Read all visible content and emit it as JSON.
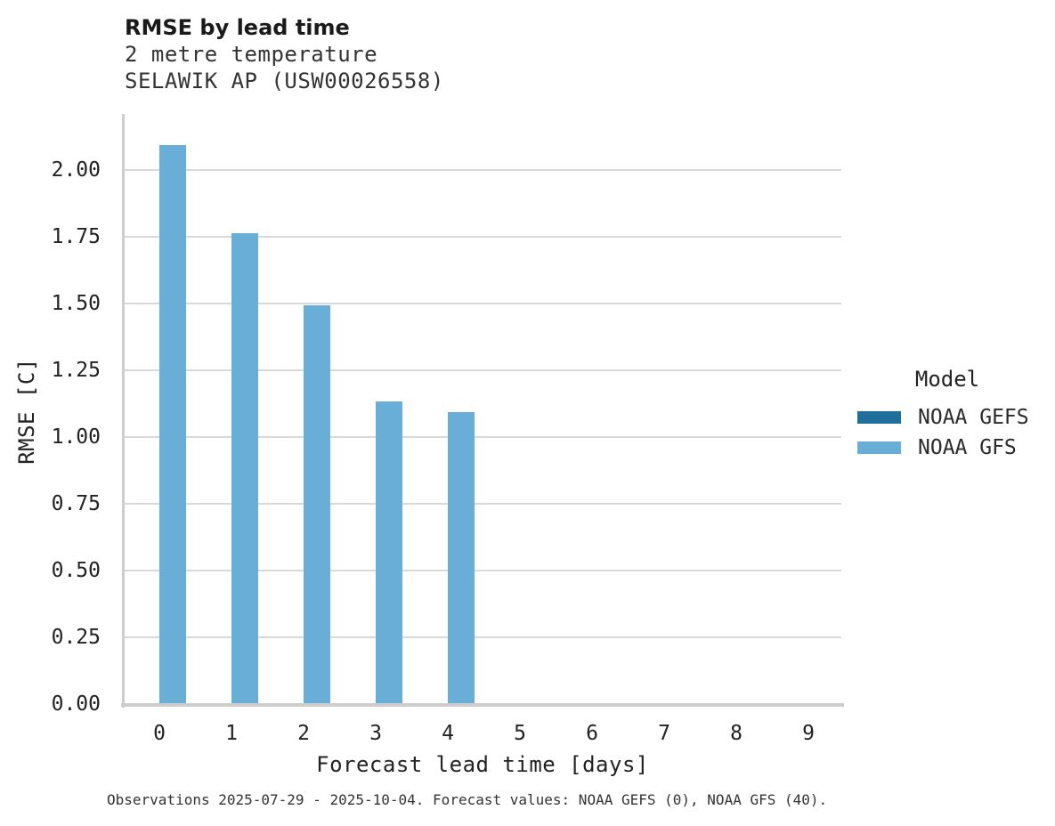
{
  "header": {
    "subtitle_line1": "2 metre temperature",
    "subtitle_line2": "SELAWIK AP (USW00026558)"
  },
  "chart_data": {
    "type": "bar",
    "title": "RMSE by lead time",
    "subtitle": [
      "2 metre temperature",
      "SELAWIK AP (USW00026558)"
    ],
    "xlabel": "Forecast lead time [days]",
    "ylabel": "RMSE [C]",
    "categories": [
      "0",
      "1",
      "2",
      "3",
      "4",
      "5",
      "6",
      "7",
      "8",
      "9"
    ],
    "y_ticks": [
      {
        "label": "0.00",
        "value": 0.0
      },
      {
        "label": "0.25",
        "value": 0.25
      },
      {
        "label": "0.50",
        "value": 0.5
      },
      {
        "label": "0.75",
        "value": 0.75
      },
      {
        "label": "1.00",
        "value": 1.0
      },
      {
        "label": "1.25",
        "value": 1.25
      },
      {
        "label": "1.50",
        "value": 1.5
      },
      {
        "label": "1.75",
        "value": 1.75
      },
      {
        "label": "2.00",
        "value": 2.0
      }
    ],
    "ylim": [
      0,
      2.21
    ],
    "grid": "horizontal",
    "legend": {
      "title": "Model",
      "position": "right",
      "entries": [
        {
          "label": "NOAA GEFS",
          "color": "#1f6e9c"
        },
        {
          "label": "NOAA GFS",
          "color": "#69aed6"
        }
      ]
    },
    "series": [
      {
        "name": "NOAA GEFS",
        "color": "#1f6e9c",
        "values": [
          null,
          null,
          null,
          null,
          null,
          null,
          null,
          null,
          null,
          null
        ]
      },
      {
        "name": "NOAA GFS",
        "color": "#69aed6",
        "values": [
          2.09,
          1.76,
          1.49,
          1.13,
          1.09,
          null,
          null,
          null,
          null,
          null
        ]
      }
    ]
  },
  "footer": {
    "note": "Observations 2025-07-29 - 2025-10-04. Forecast values: NOAA GEFS (0), NOAA GFS (40)."
  },
  "colors": {
    "gridline": "#d9d9d9",
    "axis": "#cdcdcd",
    "gefs": "#1f6e9c",
    "gfs": "#69aed6"
  }
}
